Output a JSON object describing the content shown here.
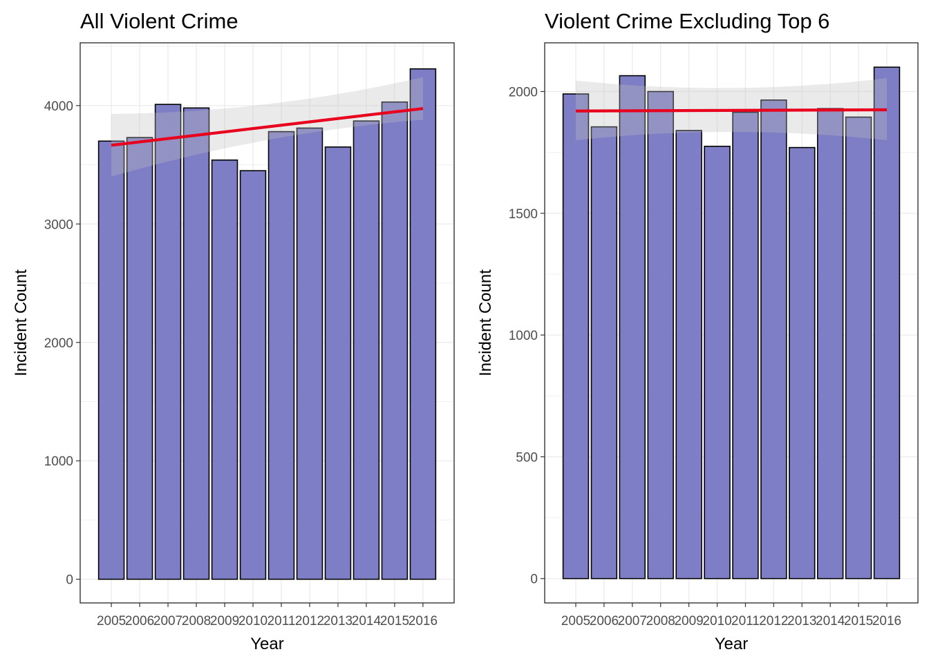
{
  "chart_data": [
    {
      "type": "bar",
      "title": "All Violent Crime",
      "xlabel": "Year",
      "ylabel": "Incident Count",
      "categories": [
        "2005",
        "2006",
        "2007",
        "2008",
        "2009",
        "2010",
        "2011",
        "2012",
        "2013",
        "2014",
        "2015",
        "2016"
      ],
      "values": [
        3700,
        3730,
        4010,
        3980,
        3540,
        3450,
        3780,
        3810,
        3650,
        3870,
        4030,
        4310
      ],
      "ylim": [
        -200,
        4530
      ],
      "yticks": [
        0,
        1000,
        2000,
        3000,
        4000
      ],
      "trend": {
        "start": 3665,
        "end": 3975
      },
      "band": {
        "lower": [
          3400,
          3880
        ],
        "upper": [
          3930,
          4240
        ]
      },
      "colors": {
        "bar": "#7e7ec6",
        "bar_outline": "#000000",
        "trend": "#e8001c",
        "band": "#bfbfbf"
      }
    },
    {
      "type": "bar",
      "title": "Violent Crime Excluding Top 6",
      "xlabel": "Year",
      "ylabel": "Incident Count",
      "categories": [
        "2005",
        "2006",
        "2007",
        "2008",
        "2009",
        "2010",
        "2011",
        "2012",
        "2013",
        "2014",
        "2015",
        "2016"
      ],
      "values": [
        1990,
        1855,
        2065,
        2000,
        1840,
        1775,
        1915,
        1965,
        1770,
        1930,
        1895,
        2100
      ],
      "ylim": [
        -100,
        2200
      ],
      "yticks": [
        0,
        500,
        1000,
        1500,
        2000
      ],
      "trend": {
        "start": 1920,
        "end": 1925
      },
      "band": {
        "lower": [
          1800,
          1800
        ],
        "upper": [
          2045,
          2055
        ]
      },
      "colors": {
        "bar": "#7e7ec6",
        "bar_outline": "#000000",
        "trend": "#e8001c",
        "band": "#bfbfbf"
      }
    }
  ]
}
